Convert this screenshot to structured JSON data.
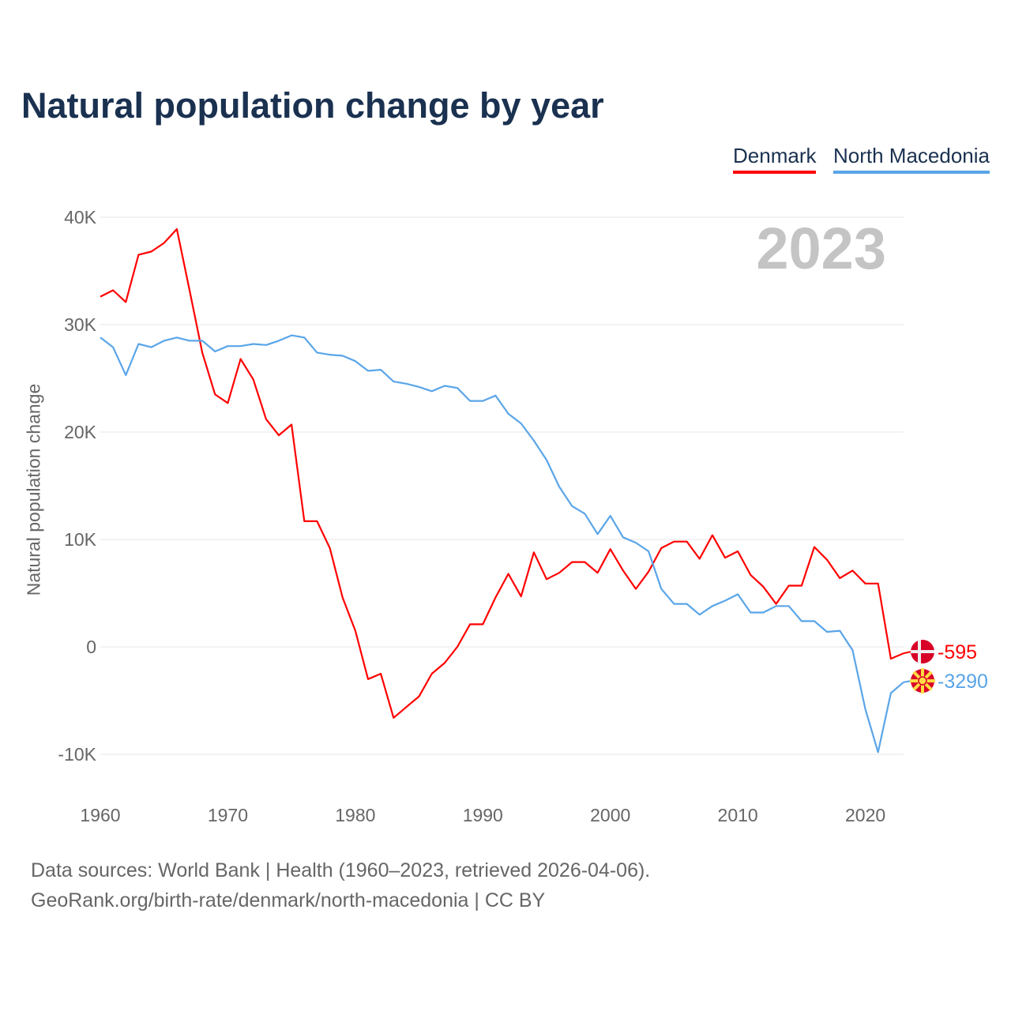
{
  "chart_data": {
    "type": "line",
    "title": "Natural population change by year",
    "ylabel": "Natural population change",
    "xlabel": "",
    "year_display": "2023",
    "ylim": [
      -10000,
      40000
    ],
    "xlim": [
      1960,
      2023
    ],
    "grid": true,
    "legend_position": "top-right",
    "y_ticks": [
      {
        "v": 40000,
        "label": "40K"
      },
      {
        "v": 30000,
        "label": "30K"
      },
      {
        "v": 20000,
        "label": "20K"
      },
      {
        "v": 10000,
        "label": "10K"
      },
      {
        "v": 0,
        "label": "0"
      },
      {
        "v": -10000,
        "label": "-10K"
      }
    ],
    "x_ticks": [
      {
        "v": 1960,
        "label": "1960"
      },
      {
        "v": 1970,
        "label": "1970"
      },
      {
        "v": 1980,
        "label": "1980"
      },
      {
        "v": 1990,
        "label": "1990"
      },
      {
        "v": 2000,
        "label": "2000"
      },
      {
        "v": 2010,
        "label": "2010"
      },
      {
        "v": 2020,
        "label": "2020"
      }
    ],
    "x_start": 1960,
    "series": [
      {
        "name": "Denmark",
        "color": "#ff0000",
        "end_label": "-595",
        "flag": "denmark-flag",
        "values": [
          32600,
          33200,
          32100,
          36500,
          36800,
          37600,
          38900,
          33200,
          27400,
          23500,
          22700,
          26800,
          24900,
          21200,
          19700,
          20700,
          11700,
          11700,
          9200,
          4600,
          1500,
          -3000,
          -2500,
          -6600,
          -5600,
          -4600,
          -2500,
          -1500,
          0,
          2100,
          2100,
          4600,
          6800,
          4700,
          8800,
          6300,
          6900,
          7900,
          7900,
          6900,
          9100,
          7100,
          5400,
          7000,
          9200,
          9800,
          9800,
          8200,
          10400,
          8300,
          8900,
          6700,
          5600,
          4000,
          5700,
          5700,
          9300,
          8100,
          6400,
          7100,
          5900,
          5900,
          -1100,
          -595
        ]
      },
      {
        "name": "North Macedonia",
        "color": "#5aa5e8",
        "end_label": "-3290",
        "flag": "north-macedonia-flag",
        "values": [
          28800,
          27900,
          25300,
          28200,
          27900,
          28500,
          28800,
          28500,
          28500,
          27500,
          28000,
          28000,
          28200,
          28100,
          28500,
          29000,
          28800,
          27400,
          27200,
          27100,
          26600,
          25700,
          25800,
          24700,
          24500,
          24200,
          23800,
          24300,
          24100,
          22900,
          22900,
          23400,
          21700,
          20800,
          19200,
          17400,
          14900,
          13100,
          12400,
          10500,
          12200,
          10200,
          9700,
          8900,
          5400,
          4000,
          4000,
          3000,
          3800,
          4300,
          4900,
          3200,
          3200,
          3800,
          3800,
          2400,
          2400,
          1400,
          1500,
          -300,
          -5800,
          -9800,
          -4300,
          -3290
        ]
      }
    ]
  },
  "footer": {
    "line1": "Data sources: World Bank | Health (1960–2023, retrieved 2026-04-06).",
    "line2": "GeoRank.org/birth-rate/denmark/north-macedonia | CC BY"
  }
}
